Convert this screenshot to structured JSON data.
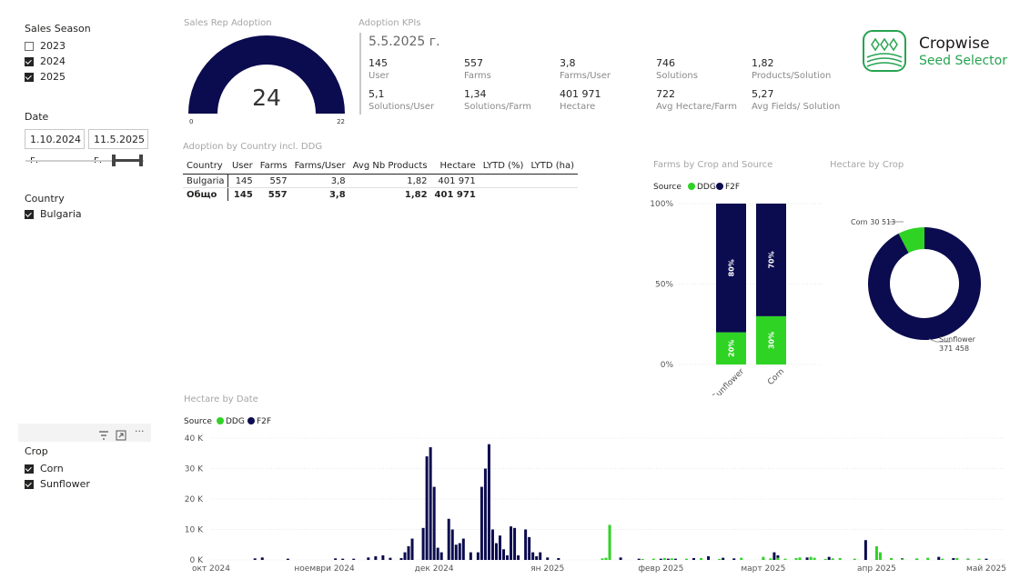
{
  "colors": {
    "navy": "#0b0b4f",
    "green": "#2fd324",
    "brand": "#27a350"
  },
  "sales_season": {
    "title": "Sales Season",
    "items": [
      {
        "label": "2023",
        "checked": false
      },
      {
        "label": "2024",
        "checked": true
      },
      {
        "label": "2025",
        "checked": true
      }
    ]
  },
  "date_filter": {
    "title": "Date",
    "from": "1.10.2024 г.",
    "to": "11.5.2025 г."
  },
  "country_filter": {
    "title": "Country",
    "items": [
      {
        "label": "Bulgaria",
        "checked": true
      }
    ]
  },
  "crop_filter": {
    "title": "Crop",
    "items": [
      {
        "label": "Corn",
        "checked": true
      },
      {
        "label": "Sunflower",
        "checked": true
      }
    ],
    "toolbar_icons": [
      "filter-icon",
      "focus-mode-icon",
      "more-options-icon"
    ]
  },
  "gauge": {
    "title": "Sales Rep Adoption",
    "value": "24",
    "min": "0",
    "max": "22",
    "fraction": 1
  },
  "kpis": {
    "title": "Adoption KPIs",
    "date": "5.5.2025 г.",
    "row1": [
      {
        "value": "145",
        "label": "User"
      },
      {
        "value": "557",
        "label": "Farms"
      },
      {
        "value": "3,8",
        "label": "Farms/User"
      },
      {
        "value": "746",
        "label": "Solutions"
      },
      {
        "value": "1,82",
        "label": "Products/Solution"
      }
    ],
    "row2": [
      {
        "value": "5,1",
        "label": "Solutions/User"
      },
      {
        "value": "1,34",
        "label": "Solutions/Farm"
      },
      {
        "value": "401 971",
        "label": "Hectare"
      },
      {
        "value": "722",
        "label": "Avg Hectare/Farm"
      },
      {
        "value": "5,27",
        "label": "Avg Fields/ Solution"
      }
    ]
  },
  "logo": {
    "name": "Cropwise",
    "sub": "Seed Selector"
  },
  "table": {
    "title": "Adoption by Country incl. DDG",
    "columns": [
      "Country",
      "User",
      "Farms",
      "Farms/User",
      "Avg Nb Products",
      "Hectare",
      "LYTD (%)",
      "LYTD (ha)"
    ],
    "rows": [
      [
        "Bulgaria",
        "145",
        "557",
        "3,8",
        "1,82",
        "401 971",
        "",
        ""
      ]
    ],
    "total": [
      "Общо",
      "145",
      "557",
      "3,8",
      "1,82",
      "401 971",
      "",
      ""
    ]
  },
  "chart_data": [
    {
      "type": "bar",
      "stacked": "100%",
      "title": "Farms by Crop and Source",
      "legend_title": "Source",
      "categories": [
        "Sunflower",
        "Corn"
      ],
      "series": [
        {
          "name": "DDG",
          "values": [
            20,
            30
          ],
          "labels": [
            "20%",
            "30%"
          ]
        },
        {
          "name": "F2F",
          "values": [
            80,
            70
          ],
          "labels": [
            "80%",
            "70%"
          ]
        }
      ],
      "ytick_labels": [
        "100%",
        "50%",
        "0%"
      ],
      "ylim": [
        0,
        100
      ]
    },
    {
      "type": "pie",
      "donut": true,
      "title": "Hectare by Crop",
      "slices": [
        {
          "name": "Corn",
          "value": 30513,
          "label": "Corn 30 513"
        },
        {
          "name": "Sunflower",
          "value": 371458,
          "label_line1": "Sunflower",
          "label_line2": "371 458"
        }
      ]
    },
    {
      "type": "bar",
      "title": "Hectare by Date",
      "legend_title": "Source",
      "legend": [
        "DDG",
        "F2F"
      ],
      "ytick_labels": [
        "40 K",
        "30 K",
        "20 K",
        "10 K",
        "0 K"
      ],
      "yticks": [
        40000,
        30000,
        20000,
        10000,
        0
      ],
      "ylim": [
        0,
        40000
      ],
      "xtick_labels": [
        "окт 2024",
        "ноември 2024",
        "дек 2024",
        "ян 2025",
        "февр 2025",
        "март 2025",
        "апр 2025",
        "май 2025"
      ],
      "xticks": [
        "2024-10-01",
        "2024-11-01",
        "2024-12-01",
        "2025-01-01",
        "2025-02-01",
        "2025-03-01",
        "2025-04-01",
        "2025-05-01"
      ],
      "xlim": [
        "2024-10-01",
        "2025-05-01"
      ],
      "series": [
        {
          "name": "F2F",
          "points": [
            [
              "2024-10-13",
              500
            ],
            [
              "2024-10-15",
              800
            ],
            [
              "2024-10-22",
              400
            ],
            [
              "2024-11-04",
              500
            ],
            [
              "2024-11-06",
              400
            ],
            [
              "2024-11-09",
              400
            ],
            [
              "2024-11-13",
              800
            ],
            [
              "2024-11-15",
              1200
            ],
            [
              "2024-11-17",
              1500
            ],
            [
              "2024-11-19",
              700
            ],
            [
              "2024-11-22",
              600
            ],
            [
              "2024-11-23",
              2500
            ],
            [
              "2024-11-24",
              4500
            ],
            [
              "2024-11-25",
              7000
            ],
            [
              "2024-11-28",
              10500
            ],
            [
              "2024-11-29",
              34000
            ],
            [
              "2024-11-30",
              37000
            ],
            [
              "2024-12-01",
              24000
            ],
            [
              "2024-12-02",
              4000
            ],
            [
              "2024-12-03",
              2500
            ],
            [
              "2024-12-05",
              13500
            ],
            [
              "2024-12-06",
              10000
            ],
            [
              "2024-12-07",
              5000
            ],
            [
              "2024-12-08",
              5500
            ],
            [
              "2024-12-09",
              7000
            ],
            [
              "2024-12-11",
              2500
            ],
            [
              "2024-12-13",
              2500
            ],
            [
              "2024-12-14",
              24000
            ],
            [
              "2024-12-15",
              30000
            ],
            [
              "2024-12-16",
              38000
            ],
            [
              "2024-12-17",
              10000
            ],
            [
              "2024-12-18",
              5500
            ],
            [
              "2024-12-19",
              8000
            ],
            [
              "2024-12-20",
              3500
            ],
            [
              "2024-12-21",
              1500
            ],
            [
              "2024-12-22",
              11000
            ],
            [
              "2024-12-23",
              10500
            ],
            [
              "2024-12-24",
              1500
            ],
            [
              "2024-12-26",
              10000
            ],
            [
              "2024-12-27",
              7500
            ],
            [
              "2024-12-28",
              2500
            ],
            [
              "2024-12-29",
              1200
            ],
            [
              "2024-12-30",
              2500
            ],
            [
              "2025-01-01",
              800
            ],
            [
              "2025-01-04",
              600
            ],
            [
              "2025-01-21",
              800
            ],
            [
              "2025-01-26",
              400
            ],
            [
              "2025-02-01",
              400
            ],
            [
              "2025-02-03",
              400
            ],
            [
              "2025-02-05",
              400
            ],
            [
              "2025-02-10",
              600
            ],
            [
              "2025-02-14",
              1200
            ],
            [
              "2025-02-18",
              700
            ],
            [
              "2025-02-21",
              500
            ],
            [
              "2025-03-01",
              300
            ],
            [
              "2025-03-04",
              2500
            ],
            [
              "2025-03-05",
              1500
            ],
            [
              "2025-03-13",
              800
            ],
            [
              "2025-03-19",
              1000
            ],
            [
              "2025-03-29",
              6500
            ],
            [
              "2025-04-01",
              500
            ],
            [
              "2025-04-08",
              500
            ],
            [
              "2025-04-12",
              400
            ],
            [
              "2025-04-18",
              1000
            ],
            [
              "2025-04-22",
              600
            ],
            [
              "2025-04-26",
              400
            ],
            [
              "2025-05-01",
              400
            ]
          ]
        },
        {
          "name": "DDG",
          "points": [
            [
              "2025-01-16",
              500
            ],
            [
              "2025-01-17",
              700
            ],
            [
              "2025-01-18",
              11500
            ],
            [
              "2025-01-27",
              300
            ],
            [
              "2025-01-30",
              400
            ],
            [
              "2025-02-02",
              600
            ],
            [
              "2025-02-04",
              500
            ],
            [
              "2025-02-08",
              400
            ],
            [
              "2025-02-12",
              600
            ],
            [
              "2025-02-17",
              300
            ],
            [
              "2025-02-23",
              700
            ],
            [
              "2025-03-01",
              1000
            ],
            [
              "2025-03-03",
              500
            ],
            [
              "2025-03-05",
              700
            ],
            [
              "2025-03-07",
              400
            ],
            [
              "2025-03-10",
              600
            ],
            [
              "2025-03-11",
              800
            ],
            [
              "2025-03-14",
              1000
            ],
            [
              "2025-03-15",
              700
            ],
            [
              "2025-03-18",
              300
            ],
            [
              "2025-03-20",
              500
            ],
            [
              "2025-03-22",
              600
            ],
            [
              "2025-03-26",
              400
            ],
            [
              "2025-04-01",
              4500
            ],
            [
              "2025-04-02",
              2500
            ],
            [
              "2025-04-05",
              600
            ],
            [
              "2025-04-08",
              300
            ],
            [
              "2025-04-12",
              500
            ],
            [
              "2025-04-15",
              700
            ],
            [
              "2025-04-19",
              400
            ],
            [
              "2025-04-23",
              600
            ],
            [
              "2025-04-26",
              300
            ],
            [
              "2025-04-29",
              400
            ]
          ]
        }
      ]
    }
  ]
}
